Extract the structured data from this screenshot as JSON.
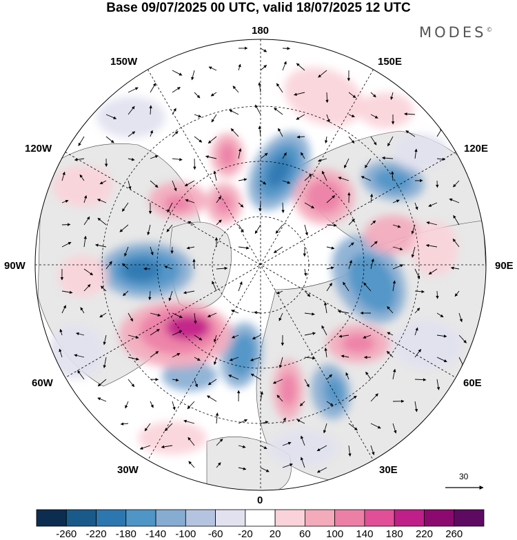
{
  "title": "Base 09/07/2025 00 UTC, valid 18/07/2025 12 UTC",
  "brand": "MODES",
  "brand_mark": "©",
  "longitude_labels": {
    "lon_180": "180",
    "lon_150w": "150W",
    "lon_150e": "150E",
    "lon_120w": "120W",
    "lon_120e": "120E",
    "lon_90w": "90W",
    "lon_90e": "90E",
    "lon_60w": "60W",
    "lon_60e": "60E",
    "lon_30w": "30W",
    "lon_30e": "30E",
    "lon_0": "0"
  },
  "reference_vector": {
    "label": "30"
  },
  "colorbar": {
    "ticks": [
      "-260",
      "-220",
      "-180",
      "-140",
      "-100",
      "-60",
      "-20",
      "20",
      "60",
      "100",
      "140",
      "180",
      "220",
      "260"
    ],
    "colors": [
      "#0c2d4f",
      "#195a8a",
      "#2c77b0",
      "#4f95c6",
      "#86acd2",
      "#b4c4e0",
      "#e1e1f0",
      "#ffffff",
      "#f9d3d9",
      "#f3aabb",
      "#ec7fa6",
      "#e04f98",
      "#c01e88",
      "#8c0a6f",
      "#5e0a63"
    ]
  },
  "map_colors": {
    "ocean": "#ffffff",
    "land": "#e8e8e8",
    "coast": "#404040",
    "grid": "#000000"
  },
  "field_colors": {
    "neg_strong": "#2c77b0",
    "neg_mid": "#4f95c6",
    "neg_weak": "#86acd2",
    "neg_faint": "#e1e1f0",
    "pos_faint": "#f9d3d9",
    "pos_weak": "#f3aabb",
    "pos_mid": "#ec7fa6",
    "pos_strong": "#c01e88"
  }
}
